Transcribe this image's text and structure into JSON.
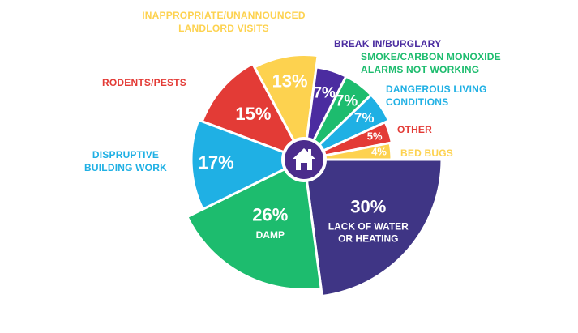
{
  "chart_data": {
    "type": "pie",
    "title": "",
    "center_icon": "house-icon",
    "slices": [
      {
        "pct": "30%",
        "value": 30,
        "label": [
          "LACK OF WATER",
          "OR HEATING"
        ],
        "color": "#3f3585"
      },
      {
        "pct": "26%",
        "value": 26,
        "label": [
          "DAMP"
        ],
        "color": "#1dbc6e"
      },
      {
        "pct": "17%",
        "value": 17,
        "label": [
          "DISPRUPTIVE",
          "BUILDING WORK"
        ],
        "color": "#1fb0e4"
      },
      {
        "pct": "15%",
        "value": 15,
        "label": [
          "RODENTS/PESTS"
        ],
        "color": "#e33b36"
      },
      {
        "pct": "13%",
        "value": 13,
        "label": [
          "INAPPROPRIATE/UNANNOUNCED",
          "LANDLORD VISITS"
        ],
        "color": "#fdd24f"
      },
      {
        "pct": "7%",
        "value": 7,
        "label": [
          "BREAK IN/BURGLARY"
        ],
        "color": "#4b2ca0"
      },
      {
        "pct": "7%",
        "value": 7,
        "label": [
          "SMOKE/CARBON MONOXIDE",
          "ALARMS NOT WORKING"
        ],
        "color": "#1dbc6e"
      },
      {
        "pct": "7%",
        "value": 7,
        "label": [
          "DANGEROUS LIVING",
          "CONDITIONS"
        ],
        "color": "#1fb0e4"
      },
      {
        "pct": "5%",
        "value": 5,
        "label": [
          "OTHER"
        ],
        "color": "#e33b36"
      },
      {
        "pct": "4%",
        "value": 4,
        "label": [
          "BED BUGS"
        ],
        "color": "#fdd24f"
      }
    ]
  }
}
